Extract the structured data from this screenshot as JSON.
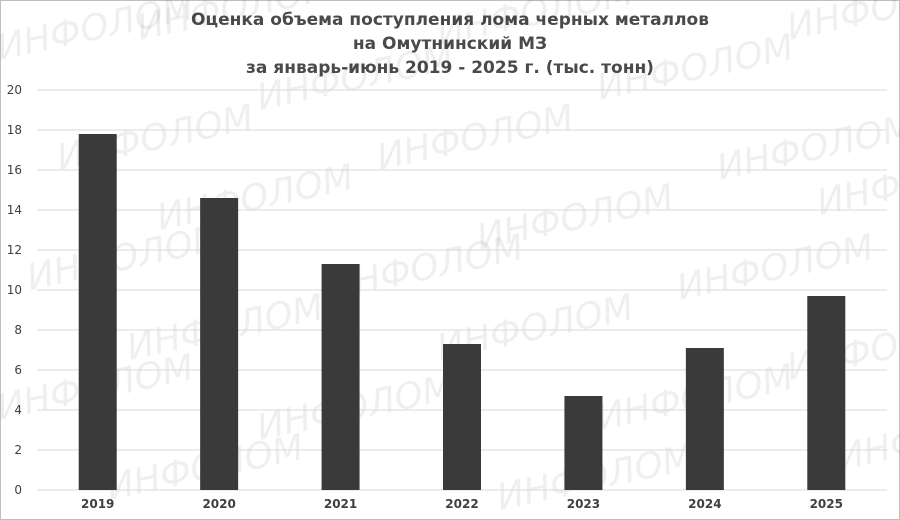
{
  "chart_data": {
    "type": "bar",
    "title_lines": [
      "Оценка объема поступления лома черных металлов",
      "на Омутнинский МЗ",
      "за январь-июнь 2019 - 2025 г. (тыс. тонн)"
    ],
    "categories": [
      "2019",
      "2020",
      "2021",
      "2022",
      "2023",
      "2024",
      "2025"
    ],
    "values": [
      17.8,
      14.6,
      11.3,
      7.3,
      4.7,
      7.1,
      9.7
    ],
    "ylim": [
      0,
      20
    ],
    "yticks": [
      "0",
      "2",
      "4",
      "6",
      "8",
      "10",
      "12",
      "14",
      "16",
      "18",
      "20"
    ],
    "grid": true,
    "bar_color": "#3a3a3a",
    "grid_color": "#d9d9d9",
    "xlabel": "",
    "ylabel": ""
  },
  "watermark": {
    "text": "ИНФОЛОМ"
  }
}
